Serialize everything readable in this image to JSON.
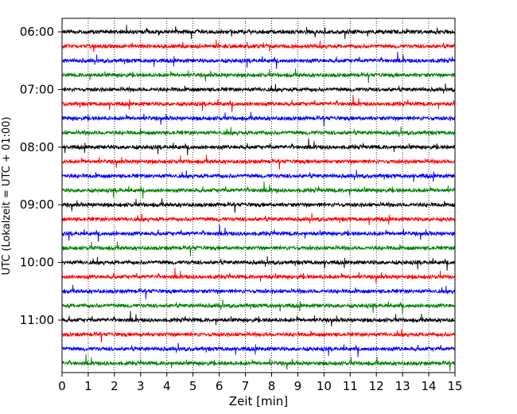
{
  "chart_data": {
    "type": "line",
    "title": "",
    "xlabel": "Zeit  [min]",
    "ylabel": "UTC (Lokalzeit = UTC + 01:00)",
    "xlim": [
      0,
      15
    ],
    "x_ticks": [
      "0",
      "1",
      "2",
      "3",
      "4",
      "5",
      "6",
      "7",
      "8",
      "9",
      "10",
      "11",
      "12",
      "13",
      "14",
      "15"
    ],
    "y_ticks": [
      "06:00",
      "07:00",
      "08:00",
      "09:00",
      "10:00",
      "11:00"
    ],
    "trace_interval_min": 15,
    "grid": "vertical dotted at each minute",
    "colors": [
      "#000000",
      "#ff0000",
      "#0000ff",
      "#008000"
    ],
    "traces": [
      {
        "time": "06:00",
        "color": "#000000"
      },
      {
        "time": "06:15",
        "color": "#ff0000"
      },
      {
        "time": "06:30",
        "color": "#0000ff"
      },
      {
        "time": "06:45",
        "color": "#008000"
      },
      {
        "time": "07:00",
        "color": "#000000"
      },
      {
        "time": "07:15",
        "color": "#ff0000"
      },
      {
        "time": "07:30",
        "color": "#0000ff"
      },
      {
        "time": "07:45",
        "color": "#008000"
      },
      {
        "time": "08:00",
        "color": "#000000"
      },
      {
        "time": "08:15",
        "color": "#ff0000"
      },
      {
        "time": "08:30",
        "color": "#0000ff"
      },
      {
        "time": "08:45",
        "color": "#008000"
      },
      {
        "time": "09:00",
        "color": "#000000"
      },
      {
        "time": "09:15",
        "color": "#ff0000"
      },
      {
        "time": "09:30",
        "color": "#0000ff"
      },
      {
        "time": "09:45",
        "color": "#008000"
      },
      {
        "time": "10:00",
        "color": "#000000"
      },
      {
        "time": "10:15",
        "color": "#ff0000"
      },
      {
        "time": "10:30",
        "color": "#0000ff"
      },
      {
        "time": "10:45",
        "color": "#008000"
      },
      {
        "time": "11:00",
        "color": "#000000"
      },
      {
        "time": "11:15",
        "color": "#ff0000"
      },
      {
        "time": "11:30",
        "color": "#0000ff"
      },
      {
        "time": "11:45",
        "color": "#008000"
      }
    ]
  }
}
